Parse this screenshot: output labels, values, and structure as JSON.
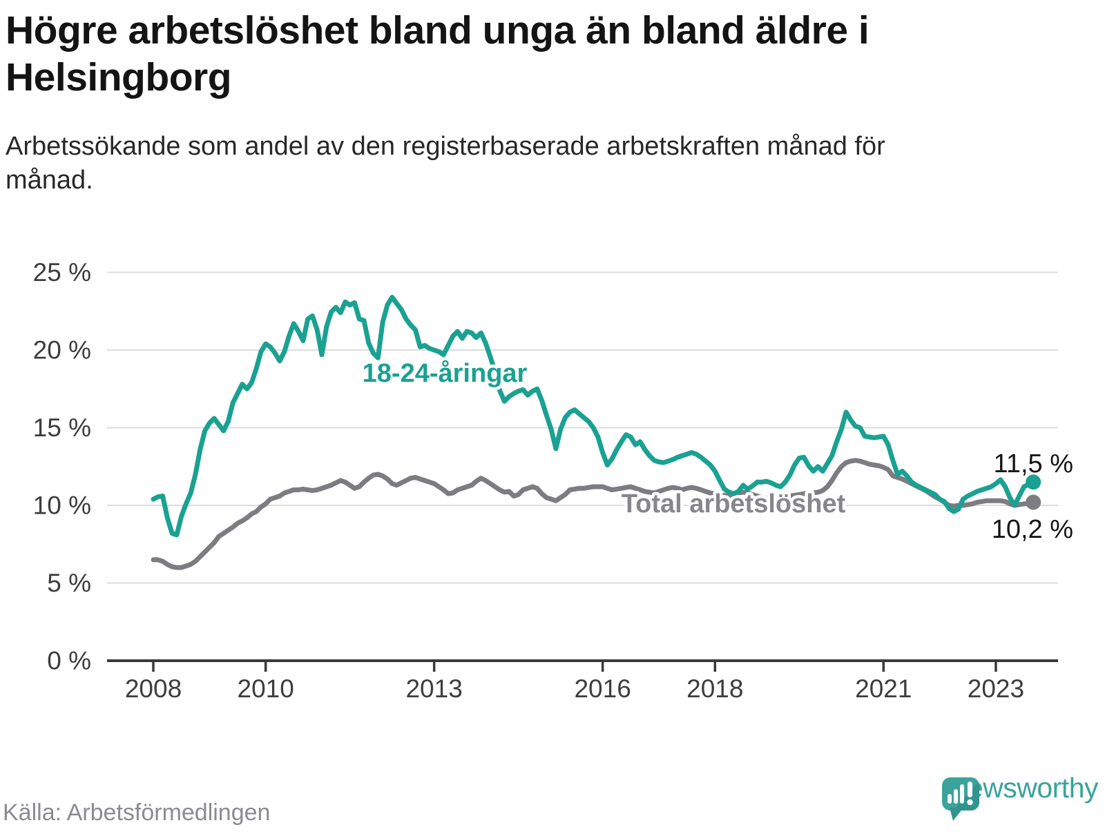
{
  "title": "Högre arbetslöshet bland unga än bland äldre i Helsingborg",
  "subtitle": "Arbetssökande som andel av den registerbaserade arbetskraften månad för månad.",
  "source": "Källa: Arbetsförmedlingen",
  "brand": {
    "name": "Newsworthy",
    "color": "#3aa39c"
  },
  "colors": {
    "youth": "#1aa192",
    "total": "#7c7c81",
    "total_label": "#86868b",
    "grid": "#dcdcdc",
    "axis": "#3a3a3a",
    "tick_text": "#3d3d3d",
    "value_text": "#141414",
    "halo": "#ffffff"
  },
  "chart_data": {
    "type": "line",
    "title": "Högre arbetslöshet bland unga än bland äldre i Helsingborg",
    "subtitle": "Arbetssökande som andel av den registerbaserade arbetskraften månad för månad.",
    "x_start_year": 2008,
    "x_months_per_step": 1,
    "xlabel": "",
    "ylabel": "",
    "ylim": [
      0,
      27
    ],
    "grid": "horizontal",
    "legend_position": "inline-annotations",
    "y_ticks": [
      {
        "value": 0,
        "label": "0 %"
      },
      {
        "value": 5,
        "label": "5 %"
      },
      {
        "value": 10,
        "label": "10 %"
      },
      {
        "value": 15,
        "label": "15 %"
      },
      {
        "value": 20,
        "label": "20 %"
      },
      {
        "value": 25,
        "label": "25 %"
      }
    ],
    "x_ticks": [
      {
        "year": 2008,
        "label": "2008"
      },
      {
        "year": 2010,
        "label": "2010"
      },
      {
        "year": 2013,
        "label": "2013"
      },
      {
        "year": 2016,
        "label": "2016"
      },
      {
        "year": 2018,
        "label": "2018"
      },
      {
        "year": 2021,
        "label": "2021"
      },
      {
        "year": 2023,
        "label": "2023"
      }
    ],
    "series": [
      {
        "name": "total",
        "label": "Total arbetslöshet",
        "end_label": "10,2 %",
        "end_value": 10.2,
        "values": [
          6.5,
          6.5,
          6.4,
          6.2,
          6.05,
          6.0,
          6.0,
          6.1,
          6.2,
          6.4,
          6.7,
          7.0,
          7.3,
          7.6,
          8.0,
          8.2,
          8.4,
          8.6,
          8.85,
          9.0,
          9.2,
          9.45,
          9.6,
          9.9,
          10.1,
          10.4,
          10.5,
          10.6,
          10.8,
          10.9,
          11.0,
          11.0,
          11.05,
          11.0,
          10.95,
          11.0,
          11.1,
          11.2,
          11.3,
          11.45,
          11.6,
          11.5,
          11.3,
          11.1,
          11.2,
          11.5,
          11.75,
          11.95,
          12.0,
          11.9,
          11.7,
          11.4,
          11.3,
          11.45,
          11.6,
          11.75,
          11.8,
          11.7,
          11.6,
          11.5,
          11.4,
          11.2,
          11.0,
          10.75,
          10.8,
          11.0,
          11.1,
          11.2,
          11.3,
          11.55,
          11.75,
          11.6,
          11.4,
          11.2,
          11.0,
          10.85,
          10.9,
          10.6,
          10.7,
          11.0,
          11.1,
          11.2,
          11.1,
          10.75,
          10.5,
          10.4,
          10.3,
          10.5,
          10.7,
          11.0,
          11.05,
          11.1,
          11.1,
          11.15,
          11.2,
          11.2,
          11.2,
          11.1,
          11.0,
          11.05,
          11.1,
          11.15,
          11.2,
          11.1,
          11.0,
          10.9,
          10.85,
          10.8,
          10.9,
          11.0,
          11.1,
          11.15,
          11.1,
          11.0,
          11.1,
          11.15,
          11.1,
          11.0,
          10.9,
          10.8,
          10.75,
          10.7,
          10.65,
          10.6,
          10.7,
          10.8,
          10.85,
          10.8,
          10.7,
          10.6,
          10.5,
          10.45,
          10.4,
          10.45,
          10.5,
          10.55,
          10.6,
          10.65,
          10.7,
          10.75,
          10.8,
          10.8,
          10.85,
          10.95,
          11.2,
          11.6,
          12.1,
          12.5,
          12.75,
          12.85,
          12.9,
          12.85,
          12.75,
          12.65,
          12.6,
          12.55,
          12.45,
          12.3,
          11.9,
          11.8,
          11.7,
          11.55,
          11.4,
          11.25,
          11.1,
          10.95,
          10.75,
          10.55,
          10.4,
          10.2,
          10.0,
          9.95,
          10.0,
          10.0,
          10.05,
          10.1,
          10.2,
          10.25,
          10.3,
          10.3,
          10.3,
          10.3,
          10.25,
          10.1,
          10.0,
          10.05,
          10.1,
          10.1,
          10.2
        ]
      },
      {
        "name": "youth",
        "label": "18-24-åringar",
        "end_label": "11,5 %",
        "end_value": 11.5,
        "values": [
          10.4,
          10.55,
          10.6,
          9.2,
          8.2,
          8.1,
          9.3,
          10.1,
          10.8,
          12.0,
          13.6,
          14.8,
          15.3,
          15.6,
          15.2,
          14.8,
          15.4,
          16.6,
          17.2,
          17.8,
          17.5,
          17.9,
          18.8,
          19.9,
          20.4,
          20.2,
          19.8,
          19.3,
          19.9,
          20.9,
          21.7,
          21.2,
          20.6,
          22.0,
          22.2,
          21.3,
          19.7,
          21.5,
          22.45,
          22.75,
          22.4,
          23.1,
          22.9,
          23.05,
          22.0,
          21.9,
          20.45,
          19.8,
          19.5,
          21.8,
          22.9,
          23.4,
          23.0,
          22.6,
          22.0,
          21.6,
          21.3,
          20.2,
          20.3,
          20.1,
          20.0,
          19.9,
          19.7,
          20.3,
          20.9,
          21.2,
          20.75,
          21.2,
          21.1,
          20.8,
          21.1,
          20.45,
          19.55,
          18.6,
          17.4,
          16.7,
          17.0,
          17.2,
          17.35,
          17.45,
          17.1,
          17.35,
          17.5,
          16.75,
          15.8,
          14.9,
          13.65,
          14.9,
          15.65,
          16.0,
          16.15,
          15.9,
          15.65,
          15.4,
          15.0,
          14.4,
          13.4,
          12.6,
          13.0,
          13.6,
          14.1,
          14.55,
          14.4,
          13.9,
          14.1,
          13.6,
          13.2,
          12.9,
          12.8,
          12.75,
          12.85,
          12.95,
          13.1,
          13.2,
          13.3,
          13.4,
          13.3,
          13.1,
          12.85,
          12.6,
          12.2,
          11.6,
          11.05,
          10.85,
          10.75,
          10.9,
          11.3,
          11.05,
          11.25,
          11.5,
          11.5,
          11.55,
          11.45,
          11.3,
          11.2,
          11.5,
          11.95,
          12.6,
          13.05,
          13.1,
          12.55,
          12.2,
          12.5,
          12.2,
          12.7,
          13.2,
          14.1,
          14.9,
          16.0,
          15.5,
          15.1,
          15.0,
          14.45,
          14.4,
          14.35,
          14.4,
          14.45,
          13.9,
          12.9,
          12.0,
          12.2,
          11.9,
          11.5,
          11.3,
          11.15,
          11.0,
          10.85,
          10.7,
          10.4,
          10.25,
          9.8,
          9.6,
          9.75,
          10.4,
          10.6,
          10.75,
          10.9,
          11.0,
          11.1,
          11.2,
          11.4,
          11.65,
          11.2,
          10.5,
          10.0,
          10.6,
          11.2,
          11.35,
          11.5
        ]
      }
    ]
  }
}
